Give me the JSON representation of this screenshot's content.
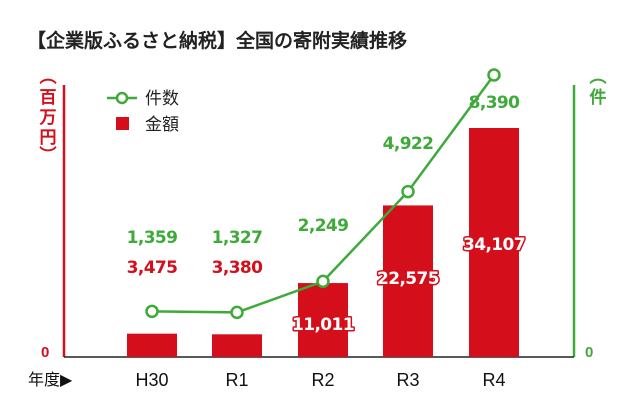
{
  "chart_data": {
    "type": "bar",
    "title": "【企業版ふるさと納税】全国の寄附実績推移",
    "xlabel": "年度▶",
    "categories": [
      "H30",
      "R1",
      "R2",
      "R3",
      "R4"
    ],
    "series": [
      {
        "name": "金額",
        "kind": "bar",
        "axis": "left",
        "unit": "百万円",
        "values": [
          3475,
          3380,
          11011,
          22575,
          34107
        ],
        "labels": [
          "3,475",
          "3,380",
          "11,011",
          "22,575",
          "34,107"
        ]
      },
      {
        "name": "件数",
        "kind": "line",
        "axis": "right",
        "unit": "件",
        "values": [
          1359,
          1327,
          2249,
          4922,
          8390
        ],
        "labels": [
          "1,359",
          "1,327",
          "2,249",
          "4,922",
          "8,390"
        ]
      }
    ],
    "left_axis": {
      "label": "百万円",
      "zero_label": "0",
      "ylim": [
        0,
        34107
      ]
    },
    "right_axis": {
      "label": "件",
      "zero_label": "0",
      "ylim": [
        0,
        8390
      ]
    },
    "legend_position": "top-left",
    "grid": false,
    "colors": {
      "bar": "#d40f1b",
      "line": "#3eaa3a",
      "title": "#222222"
    }
  }
}
